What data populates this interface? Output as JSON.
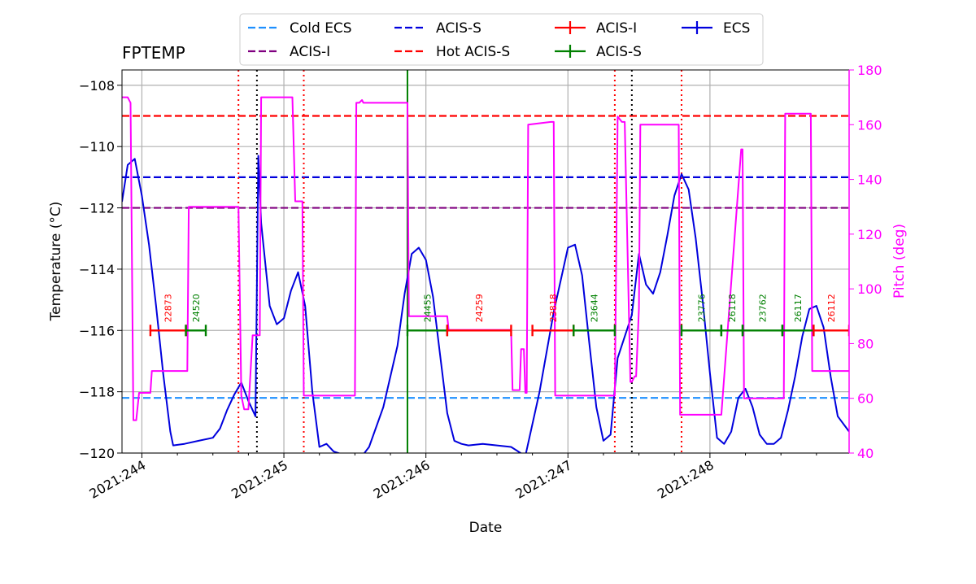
{
  "chart_data": {
    "type": "line",
    "title": "FPTEMP",
    "xlabel": "Date",
    "ylabel": "Temperature ($^\\circ$C)",
    "ylabel_display": "Temperature (°C)",
    "y2label": "Pitch (deg)",
    "x_units": "day-of-year 2021",
    "xlim": [
      243.86,
      248.98
    ],
    "ylim": [
      -120,
      -107.5
    ],
    "y2lim": [
      40,
      180
    ],
    "grid": true,
    "legend": {
      "placement": "top-center",
      "ncol": 4
    },
    "x_ticks": [
      {
        "value": 244,
        "label": "2021:244"
      },
      {
        "value": 245,
        "label": "2021:245"
      },
      {
        "value": 246,
        "label": "2021:246"
      },
      {
        "value": 247,
        "label": "2021:247"
      },
      {
        "value": 248,
        "label": "2021:248"
      }
    ],
    "y_ticks": [
      -120,
      -118,
      -116,
      -114,
      -112,
      -110,
      -108
    ],
    "y_tick_labels": [
      "−120",
      "−118",
      "−116",
      "−114",
      "−112",
      "−110",
      "−108"
    ],
    "y2_ticks": [
      40,
      60,
      80,
      100,
      120,
      140,
      160,
      180
    ],
    "legend_entries": [
      {
        "label": "Cold ECS",
        "style": "dashed",
        "color": "#1e90ff"
      },
      {
        "label": "ACIS-I",
        "style": "dashed",
        "color": "#800080"
      },
      {
        "label": "ACIS-S",
        "style": "dashed",
        "color": "#0000dd"
      },
      {
        "label": "Hot ACIS-S",
        "style": "dashed",
        "color": "#ff0000"
      },
      {
        "label": "ACIS-I",
        "style": "errorbar",
        "color": "#ff0000"
      },
      {
        "label": "ACIS-S",
        "style": "errorbar",
        "color": "#008000"
      },
      {
        "label": "ECS",
        "style": "errorbar",
        "color": "#0000dd"
      }
    ],
    "limit_lines": [
      {
        "name": "Cold ECS",
        "value": -118.2,
        "color": "#1e90ff"
      },
      {
        "name": "ACIS-I",
        "value": -112.0,
        "color": "#800080"
      },
      {
        "name": "ACIS-S",
        "value": -111.0,
        "color": "#0000dd"
      },
      {
        "name": "Hot ACIS-S",
        "value": -109.0,
        "color": "#ff0000"
      }
    ],
    "vlines": [
      {
        "x": 244.68,
        "color": "#ff0000",
        "style": "dotted"
      },
      {
        "x": 244.81,
        "color": "#000000",
        "style": "dotted"
      },
      {
        "x": 245.14,
        "color": "#ff0000",
        "style": "dotted"
      },
      {
        "x": 245.87,
        "color": "#008000",
        "style": "solid"
      },
      {
        "x": 247.33,
        "color": "#ff0000",
        "style": "dotted"
      },
      {
        "x": 247.45,
        "color": "#000000",
        "style": "dotted"
      },
      {
        "x": 247.8,
        "color": "#ff0000",
        "style": "dotted"
      }
    ],
    "observations": [
      {
        "obsid": "22873",
        "instrument": "ACIS-I",
        "start": 244.06,
        "stop": 244.31,
        "color": "#ff0000"
      },
      {
        "obsid": "24520",
        "instrument": "ACIS-S",
        "start": 244.31,
        "stop": 244.45,
        "color": "#008000"
      },
      {
        "obsid": "24455",
        "instrument": "ACIS-S",
        "start": 245.87,
        "stop": 246.15,
        "color": "#008000"
      },
      {
        "obsid": "24259",
        "instrument": "ACIS-I",
        "start": 246.15,
        "stop": 246.6,
        "color": "#ff0000"
      },
      {
        "obsid": "23818",
        "instrument": "ACIS-I",
        "start": 246.75,
        "stop": 247.04,
        "color": "#ff0000"
      },
      {
        "obsid": "23644",
        "instrument": "ACIS-S",
        "start": 247.04,
        "stop": 247.33,
        "color": "#008000"
      },
      {
        "obsid": "23776",
        "instrument": "ACIS-S",
        "start": 247.8,
        "stop": 248.08,
        "color": "#008000"
      },
      {
        "obsid": "26118",
        "instrument": "ACIS-S",
        "start": 248.08,
        "stop": 248.23,
        "color": "#008000"
      },
      {
        "obsid": "23762",
        "instrument": "ACIS-S",
        "start": 248.23,
        "stop": 248.51,
        "color": "#008000"
      },
      {
        "obsid": "26117",
        "instrument": "ACIS-S",
        "start": 248.51,
        "stop": 248.73,
        "color": "#008000"
      },
      {
        "obsid": "26112",
        "instrument": "ACIS-I",
        "start": 248.73,
        "stop": 248.98,
        "color": "#ff0000"
      }
    ],
    "obs_level": -116.0,
    "series": [
      {
        "name": "FPTEMP",
        "axis": "left",
        "color": "#0000dd",
        "x": [
          243.86,
          243.9,
          243.95,
          244.0,
          244.05,
          244.1,
          244.15,
          244.2,
          244.22,
          244.3,
          244.4,
          244.5,
          244.55,
          244.6,
          244.65,
          244.7,
          244.75,
          244.8,
          244.82,
          244.84,
          244.9,
          244.95,
          245.0,
          245.05,
          245.1,
          245.15,
          245.2,
          245.25,
          245.3,
          245.35,
          245.45,
          245.55,
          245.6,
          245.7,
          245.8,
          245.85,
          245.9,
          245.95,
          246.0,
          246.05,
          246.1,
          246.15,
          246.2,
          246.25,
          246.3,
          246.4,
          246.5,
          246.6,
          246.65,
          246.7,
          246.8,
          246.9,
          247.0,
          247.05,
          247.1,
          247.15,
          247.2,
          247.25,
          247.3,
          247.35,
          247.45,
          247.5,
          247.55,
          247.6,
          247.65,
          247.7,
          247.75,
          247.8,
          247.85,
          247.9,
          247.95,
          248.0,
          248.05,
          248.1,
          248.15,
          248.2,
          248.25,
          248.3,
          248.35,
          248.4,
          248.45,
          248.5,
          248.55,
          248.6,
          248.65,
          248.7,
          248.75,
          248.8,
          248.85,
          248.9,
          248.98
        ],
        "y": [
          -111.8,
          -110.6,
          -110.4,
          -111.6,
          -113.2,
          -115.2,
          -117.4,
          -119.3,
          -119.75,
          -119.7,
          -119.6,
          -119.5,
          -119.2,
          -118.6,
          -118.1,
          -117.7,
          -118.3,
          -118.8,
          -110.3,
          -112.5,
          -115.2,
          -115.8,
          -115.6,
          -114.7,
          -114.1,
          -115.2,
          -118.0,
          -119.8,
          -119.7,
          -119.95,
          -120.1,
          -120.1,
          -119.8,
          -118.5,
          -116.5,
          -114.8,
          -113.5,
          -113.3,
          -113.7,
          -114.9,
          -116.8,
          -118.7,
          -119.6,
          -119.7,
          -119.75,
          -119.7,
          -119.75,
          -119.8,
          -119.95,
          -120.1,
          -118.0,
          -115.4,
          -113.3,
          -113.2,
          -114.2,
          -116.4,
          -118.5,
          -119.6,
          -119.4,
          -116.9,
          -115.5,
          -113.5,
          -114.5,
          -114.8,
          -114.1,
          -112.9,
          -111.6,
          -110.9,
          -111.4,
          -113.0,
          -115.1,
          -117.4,
          -119.5,
          -119.7,
          -119.3,
          -118.2,
          -117.9,
          -118.5,
          -119.4,
          -119.7,
          -119.7,
          -119.5,
          -118.6,
          -117.5,
          -116.2,
          -115.3,
          -115.2,
          -115.9,
          -117.5,
          -118.8,
          -119.3
        ]
      },
      {
        "name": "Pitch",
        "axis": "right",
        "color": "#ff00ff",
        "x": [
          243.86,
          243.9,
          243.92,
          243.94,
          243.96,
          243.98,
          244.05,
          244.06,
          244.07,
          244.32,
          244.33,
          244.67,
          244.68,
          244.7,
          244.72,
          244.75,
          244.78,
          244.81,
          244.83,
          244.84,
          245.06,
          245.08,
          245.13,
          245.14,
          245.15,
          245.5,
          245.51,
          245.53,
          245.55,
          245.56,
          245.58,
          245.87,
          245.88,
          246.15,
          246.16,
          246.6,
          246.61,
          246.66,
          246.67,
          246.69,
          246.7,
          246.71,
          246.72,
          246.88,
          246.9,
          246.91,
          247.05,
          247.06,
          247.32,
          247.33,
          247.35,
          247.38,
          247.4,
          247.44,
          247.45,
          247.47,
          247.48,
          247.5,
          247.51,
          247.53,
          247.54,
          247.78,
          247.79,
          248.06,
          248.07,
          248.08,
          248.22,
          248.23,
          248.24,
          248.51,
          248.52,
          248.53,
          248.71,
          248.72,
          248.73,
          248.98
        ],
        "y": [
          170,
          170,
          168,
          52,
          52,
          62,
          62,
          62,
          70,
          70,
          130,
          130,
          130,
          61,
          56,
          56,
          83,
          83,
          83,
          170,
          170,
          132,
          132,
          61,
          61,
          61,
          168,
          168,
          169,
          168,
          168,
          168,
          90,
          90,
          85,
          85,
          63,
          63,
          78,
          78,
          62,
          62,
          160,
          161,
          161,
          61,
          61,
          61,
          61,
          61,
          163,
          161,
          161,
          66,
          66,
          68,
          68,
          93,
          160,
          160,
          160,
          160,
          54,
          54,
          54,
          54,
          151,
          151,
          60,
          60,
          60,
          164,
          164,
          70,
          70,
          70
        ]
      }
    ]
  }
}
